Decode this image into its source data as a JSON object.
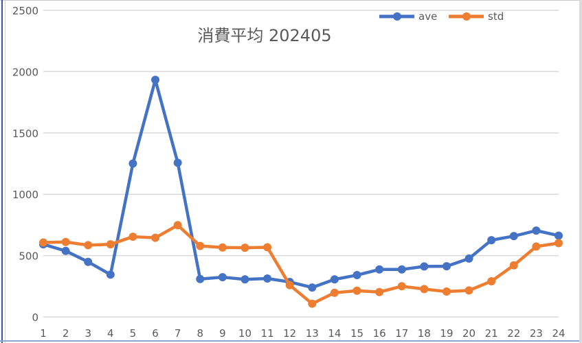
{
  "chart_data": {
    "type": "line",
    "title": "消費平均 202405",
    "xlabel": "",
    "ylabel": "",
    "categories": [
      "1",
      "2",
      "3",
      "4",
      "5",
      "6",
      "7",
      "8",
      "9",
      "10",
      "11",
      "12",
      "13",
      "14",
      "15",
      "16",
      "17",
      "18",
      "19",
      "20",
      "21",
      "22",
      "23",
      "24"
    ],
    "series": [
      {
        "name": "ave",
        "color": "#4472c4",
        "values": [
          592,
          538,
          449,
          345,
          1251,
          1933,
          1257,
          309,
          324,
          306,
          313,
          285,
          240,
          306,
          341,
          387,
          387,
          412,
          413,
          476,
          626,
          659,
          704,
          663
        ]
      },
      {
        "name": "std",
        "color": "#ed7d31",
        "values": [
          607,
          611,
          585,
          592,
          654,
          645,
          748,
          579,
          566,
          564,
          568,
          259,
          108,
          197,
          214,
          203,
          250,
          227,
          207,
          216,
          291,
          421,
          574,
          602
        ]
      }
    ],
    "ylim": [
      0,
      2500
    ],
    "yticks": [
      0,
      500,
      1000,
      1500,
      2000,
      2500
    ],
    "grid": true,
    "legend_position": "top-right"
  },
  "chart": {
    "title": "消費平均 202405",
    "legend": [
      {
        "label": "ave",
        "color": "#4472c4"
      },
      {
        "label": "std",
        "color": "#ed7d31"
      }
    ],
    "y_tick_labels": [
      "0",
      "500",
      "1000",
      "1500",
      "2000",
      "2500"
    ],
    "x_tick_labels": [
      "1",
      "2",
      "3",
      "4",
      "5",
      "6",
      "7",
      "8",
      "9",
      "10",
      "11",
      "12",
      "13",
      "14",
      "15",
      "16",
      "17",
      "18",
      "19",
      "20",
      "21",
      "22",
      "23",
      "24"
    ]
  }
}
